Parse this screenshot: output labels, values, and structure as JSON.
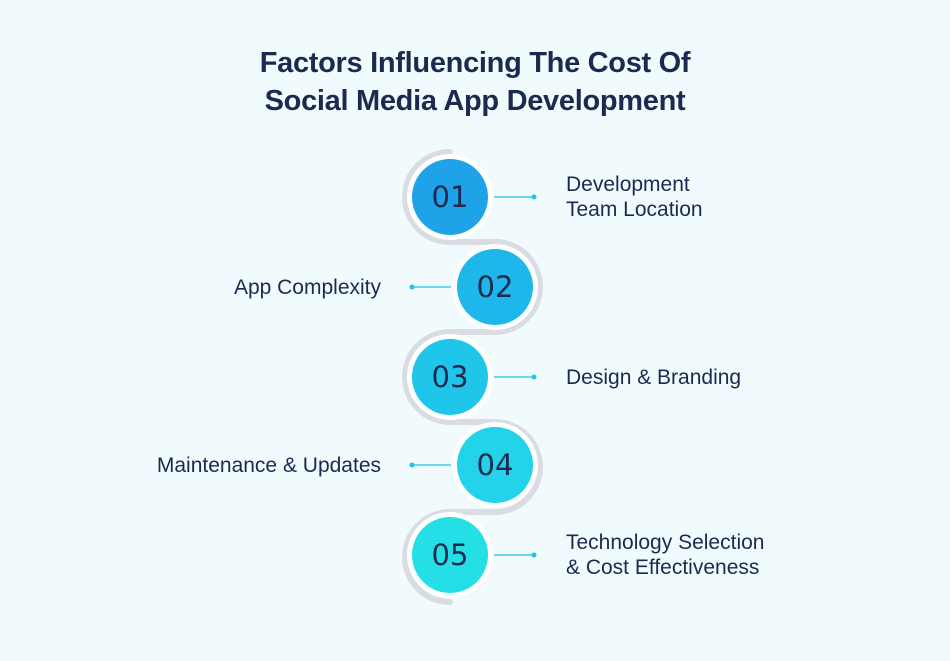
{
  "title": {
    "line1": "Factors Influencing The Cost Of",
    "line2": "Social Media App Development"
  },
  "steps": [
    {
      "number": "01",
      "label_lines": [
        "Development",
        "Team Location"
      ],
      "side": "right",
      "color": "#1fa3e8"
    },
    {
      "number": "02",
      "label_lines": [
        "App Complexity"
      ],
      "side": "left",
      "color": "#1eb7ea"
    },
    {
      "number": "03",
      "label_lines": [
        "Design & Branding"
      ],
      "side": "right",
      "color": "#20c6ea"
    },
    {
      "number": "04",
      "label_lines": [
        "Maintenance & Updates"
      ],
      "side": "left",
      "color": "#22d3ea"
    },
    {
      "number": "05",
      "label_lines": [
        "Technology Selection",
        "& Cost Effectiveness"
      ],
      "side": "right",
      "color": "#24e0e6"
    }
  ],
  "colors": {
    "background": "#f1fafd",
    "track": "#d9dde3",
    "connector": "#22c3e6",
    "text": "#1b2a4e"
  }
}
